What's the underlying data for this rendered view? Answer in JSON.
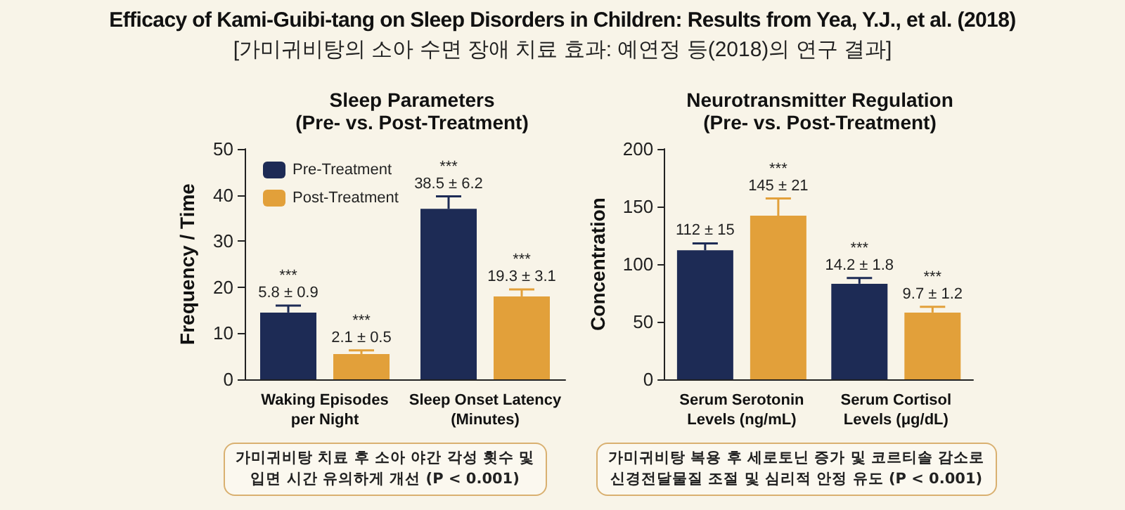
{
  "chart_data": [
    {
      "type": "other",
      "title": "Efficacy of Kami-Guibi-tang on Sleep Disorders in Children: Results from Yea, Y.J., et al. (2018)",
      "subtitle": "[가미귀비탕의 소아 수면 장애 치료 효과: 예연정 등(2018)의 연구 결과]"
    },
    {
      "type": "bar",
      "title": "Sleep Parameters\n(Pre- vs. Post-Treatment)",
      "ylabel": "Frequency / Time",
      "categories": [
        "Waking Episodes\nper Night",
        "Sleep Onset Latency\n(Minutes)"
      ],
      "ylim": [
        0,
        50
      ],
      "yticks": [
        0,
        10,
        20,
        30,
        40,
        50
      ],
      "grid": false,
      "legend": "top left",
      "series": [
        {
          "name": "Pre-Treatment",
          "color": "#1d2b55",
          "values": [
            14.5,
            37
          ],
          "errors": [
            [
              14.5,
              16
            ],
            [
              37,
              39.7
            ]
          ],
          "value_labels": [
            "***\n5.8 ± 0.9",
            "***\n38.5 ± 6.2"
          ]
        },
        {
          "name": "Post-Treatment",
          "color": "#e2a03a",
          "values": [
            5.5,
            18
          ],
          "errors": [
            [
              5.5,
              6.3
            ],
            [
              18,
              19.5
            ]
          ],
          "value_labels": [
            "***\n2.1 ± 0.5",
            "***\n19.3 ± 3.1"
          ]
        }
      ],
      "annotations": [
        "가미귀비탕 치료 후 소아 야간 각성 횟수 및\n입면 시간 유의하게 개선 (P < 0.001)"
      ]
    },
    {
      "type": "bar",
      "title": "Neurotransmitter Regulation\n(Pre- vs. Post-Treatment)",
      "ylabel": "Concentration",
      "categories": [
        "Serum Serotonin\nLevels (ng/mL)",
        "Serum Cortisol\nLevels (μg/dL)"
      ],
      "ylim": [
        0,
        200
      ],
      "yticks": [
        0,
        50,
        100,
        150,
        200
      ],
      "grid": false,
      "legend": false,
      "series": [
        {
          "color": "#1d2b55",
          "values": [
            112,
            83
          ],
          "errors": [
            [
              112,
              118
            ],
            [
              83,
              88
            ]
          ],
          "value_labels": [
            "112 ± 15",
            "***\n14.2 ± 1.8"
          ]
        },
        {
          "color": "#e2a03a",
          "values": [
            142,
            58
          ],
          "errors": [
            [
              142,
              157
            ],
            [
              58,
              63
            ]
          ],
          "value_labels": [
            "***\n145 ± 21",
            "***\n9.7 ± 1.2"
          ]
        }
      ],
      "annotations": [
        "가미귀비탕 복용 후 세로토닌 증가 및 코르티솔 감소로\n신경전달물질 조절 및 심리적 안정 유도 (P < 0.001)"
      ]
    }
  ]
}
